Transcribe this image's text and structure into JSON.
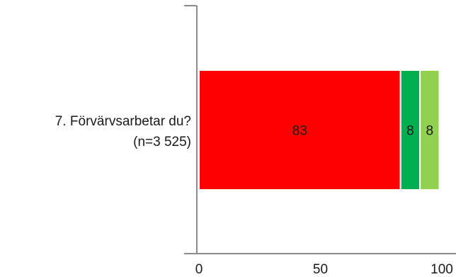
{
  "chart_data": {
    "type": "bar",
    "orientation": "horizontal",
    "stacked": true,
    "categories": [
      "7. Förvärvsarbetar du? (n=3 525)"
    ],
    "category_lines": [
      "7. Förvärvsarbetar du?",
      "(n=3 525)"
    ],
    "series": [
      {
        "values": [
          83
        ],
        "color": "#ff0000",
        "label": "83"
      },
      {
        "values": [
          8
        ],
        "color": "#00b050",
        "label": "8"
      },
      {
        "values": [
          8
        ],
        "color": "#92d050",
        "label": "8"
      }
    ],
    "xlim": [
      0,
      100
    ],
    "xticks": [
      0,
      50,
      100
    ],
    "xtick_labels": [
      "0",
      "50",
      "100"
    ],
    "grid": false
  }
}
